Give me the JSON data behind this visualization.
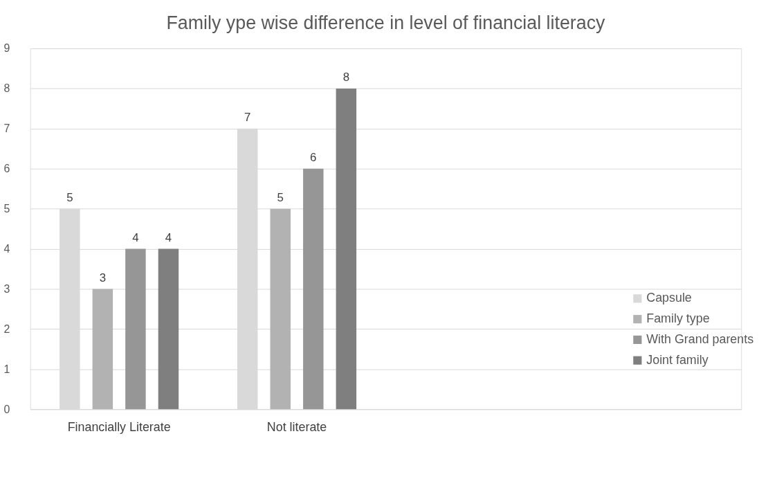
{
  "chart_data": {
    "type": "bar",
    "title": "Family ype wise difference in level of financial literacy",
    "categories": [
      "Financially Literate",
      "Not literate",
      null,
      null
    ],
    "series": [
      {
        "name": "Capsule",
        "color": "#d9d9d9",
        "values": [
          5,
          7,
          null,
          null
        ]
      },
      {
        "name": "Family type",
        "color": "#b2b2b2",
        "values": [
          3,
          5,
          null,
          null
        ]
      },
      {
        "name": "With Grand parents",
        "color": "#969696",
        "values": [
          4,
          6,
          null,
          null
        ]
      },
      {
        "name": "Joint family",
        "color": "#7f7f7f",
        "values": [
          4,
          8,
          null,
          null
        ]
      }
    ],
    "ylim": [
      0,
      9
    ],
    "yticks": [
      0,
      1,
      2,
      3,
      4,
      5,
      6,
      7,
      8,
      9
    ],
    "grid": "y",
    "legend": "right",
    "data_labels": true
  }
}
